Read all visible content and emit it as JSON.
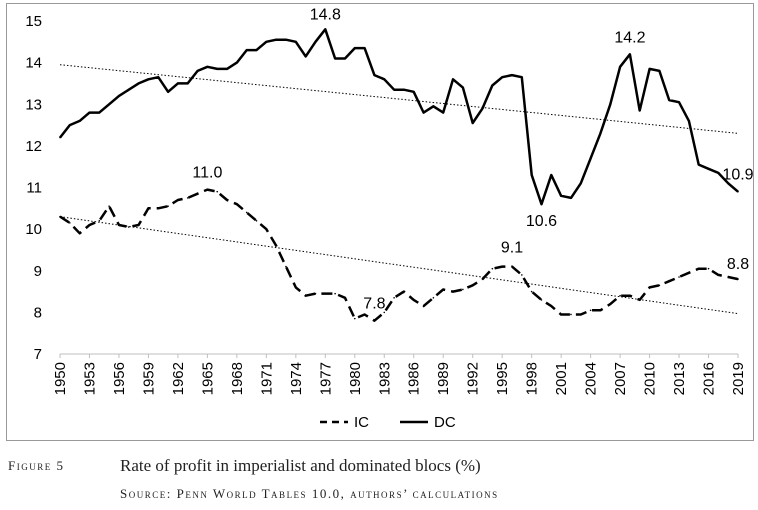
{
  "chart_data": {
    "type": "line",
    "title": "",
    "xlabel": "",
    "ylabel": "",
    "ylim": [
      7,
      15
    ],
    "yticks": [
      7,
      8,
      9,
      10,
      11,
      12,
      13,
      14,
      15
    ],
    "xlim": [
      1950,
      2019
    ],
    "xticks": [
      1950,
      1953,
      1956,
      1959,
      1962,
      1965,
      1968,
      1971,
      1974,
      1977,
      1980,
      1983,
      1986,
      1989,
      1992,
      1995,
      1998,
      2001,
      2004,
      2007,
      2010,
      2013,
      2016,
      2019
    ],
    "grid": false,
    "legend": "bottom-center",
    "x": [
      1950,
      1951,
      1952,
      1953,
      1954,
      1955,
      1956,
      1957,
      1958,
      1959,
      1960,
      1961,
      1962,
      1963,
      1964,
      1965,
      1966,
      1967,
      1968,
      1969,
      1970,
      1971,
      1972,
      1973,
      1974,
      1975,
      1976,
      1977,
      1978,
      1979,
      1980,
      1981,
      1982,
      1983,
      1984,
      1985,
      1986,
      1987,
      1988,
      1989,
      1990,
      1991,
      1992,
      1993,
      1994,
      1995,
      1996,
      1997,
      1998,
      1999,
      2000,
      2001,
      2002,
      2003,
      2004,
      2005,
      2006,
      2007,
      2008,
      2009,
      2010,
      2011,
      2012,
      2013,
      2014,
      2015,
      2016,
      2017,
      2018,
      2019
    ],
    "series": [
      {
        "name": "IC",
        "style": "dashed",
        "color": "#000000",
        "values": [
          10.3,
          10.15,
          9.9,
          10.1,
          10.2,
          10.55,
          10.1,
          10.05,
          10.1,
          10.5,
          10.5,
          10.55,
          10.7,
          10.75,
          10.85,
          10.95,
          10.9,
          10.7,
          10.6,
          10.4,
          10.2,
          10.0,
          9.6,
          9.1,
          8.6,
          8.4,
          8.45,
          8.45,
          8.45,
          8.35,
          7.85,
          7.95,
          7.8,
          8.0,
          8.35,
          8.5,
          8.3,
          8.15,
          8.35,
          8.55,
          8.5,
          8.55,
          8.65,
          8.8,
          9.05,
          9.1,
          9.1,
          8.9,
          8.5,
          8.3,
          8.15,
          7.95,
          7.95,
          7.95,
          8.05,
          8.05,
          8.2,
          8.4,
          8.4,
          8.3,
          8.6,
          8.65,
          8.75,
          8.85,
          8.95,
          9.05,
          9.05,
          8.9,
          8.85,
          8.8
        ]
      },
      {
        "name": "DC",
        "style": "solid",
        "color": "#000000",
        "values": [
          12.2,
          12.5,
          12.6,
          12.8,
          12.8,
          13.0,
          13.2,
          13.35,
          13.5,
          13.6,
          13.65,
          13.3,
          13.5,
          13.5,
          13.8,
          13.9,
          13.85,
          13.85,
          14.0,
          14.3,
          14.3,
          14.5,
          14.55,
          14.55,
          14.5,
          14.15,
          14.5,
          14.8,
          14.1,
          14.1,
          14.35,
          14.35,
          13.7,
          13.6,
          13.35,
          13.35,
          13.3,
          12.8,
          12.95,
          12.8,
          13.6,
          13.4,
          12.55,
          12.9,
          13.45,
          13.65,
          13.7,
          13.65,
          11.3,
          10.6,
          11.3,
          10.8,
          10.75,
          11.1,
          11.7,
          12.3,
          13.0,
          13.9,
          14.2,
          12.85,
          13.85,
          13.8,
          13.1,
          13.05,
          12.6,
          11.55,
          11.45,
          11.35,
          11.1,
          10.9
        ]
      }
    ],
    "trendlines": [
      {
        "series": "DC",
        "style": "dotted",
        "start": [
          1950,
          13.95
        ],
        "end": [
          2019,
          12.3
        ]
      },
      {
        "series": "IC",
        "style": "dotted",
        "start": [
          1950,
          10.3
        ],
        "end": [
          2019,
          7.97
        ]
      }
    ],
    "annotations": [
      {
        "text": "14.8",
        "x": 1977,
        "y": 14.8
      },
      {
        "text": "14.2",
        "x": 2008,
        "y": 14.2
      },
      {
        "text": "10.9",
        "x": 2019,
        "y": 10.9
      },
      {
        "text": "10.6",
        "x": 1999,
        "y": 10.6
      },
      {
        "text": "11.0",
        "x": 1965,
        "y": 10.95
      },
      {
        "text": "9.1",
        "x": 1996,
        "y": 9.1
      },
      {
        "text": "8.8",
        "x": 2019,
        "y": 8.8
      },
      {
        "text": "7.8",
        "x": 1982,
        "y": 7.8
      }
    ]
  },
  "caption": {
    "label": "Figure 5",
    "title": "Rate of profit in imperialist and dominated blocs (%)",
    "source": "Source: Penn World Tables 10.0, authors’ calculations"
  }
}
